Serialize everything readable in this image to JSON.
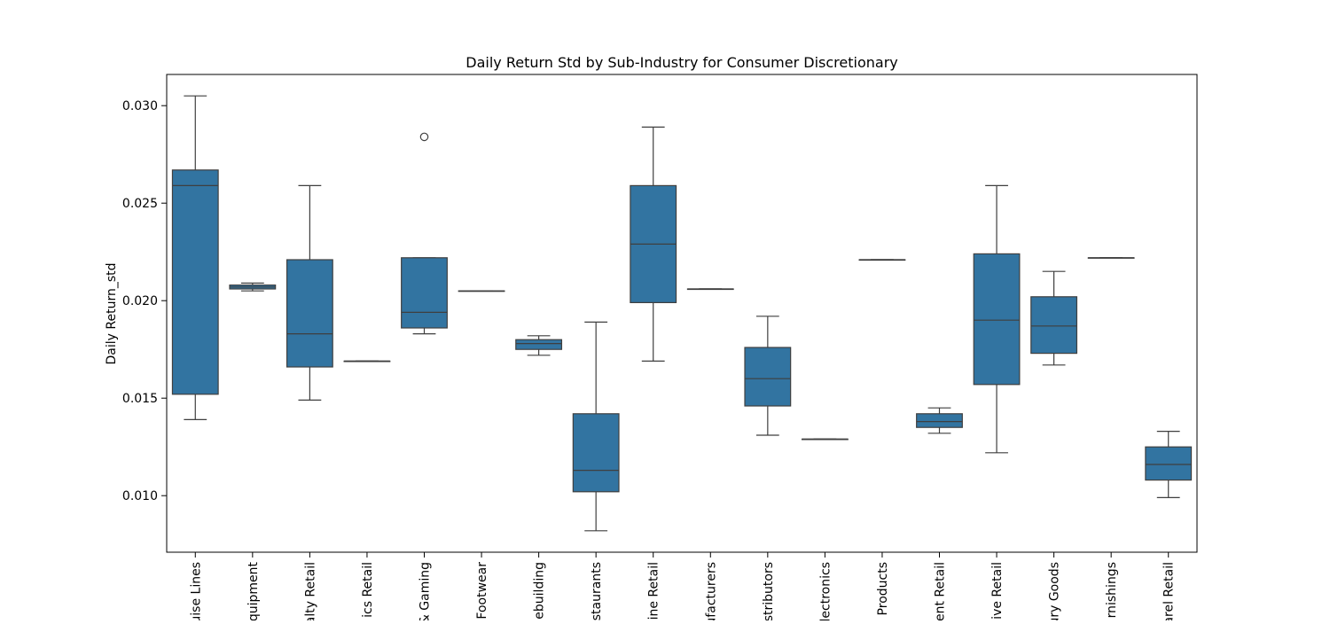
{
  "chart_data": {
    "type": "box",
    "title": "Daily Return Std by Sub-Industry for Consumer Discretionary",
    "xlabel": "",
    "ylabel": "Daily Return_std",
    "ylim": [
      0.0071,
      0.0316
    ],
    "yticks": [
      "0.010",
      "0.015",
      "0.020",
      "0.025",
      "0.030"
    ],
    "grid": false,
    "box_color": "#3274a1",
    "line_color": "#3f3f3f",
    "category_labels": [
      "uise Lines",
      "quipment",
      "alty Retail",
      "ics Retail",
      "& Gaming",
      "Footwear",
      "ebuilding",
      "staurants",
      "ine Retail",
      "ufacturers",
      "stributors",
      "lectronics",
      "Products",
      "ent Retail",
      "ive Retail",
      "ury Goods",
      "rnishings",
      "arel Retail"
    ],
    "boxes": [
      {
        "whisker_low": 0.0139,
        "q1": 0.0152,
        "median": 0.0259,
        "q3": 0.0267,
        "whisker_high": 0.0305,
        "outliers": []
      },
      {
        "whisker_low": 0.0205,
        "q1": 0.0206,
        "median": 0.0207,
        "q3": 0.0208,
        "whisker_high": 0.0209,
        "outliers": []
      },
      {
        "whisker_low": 0.0149,
        "q1": 0.0166,
        "median": 0.0183,
        "q3": 0.0221,
        "whisker_high": 0.0259,
        "outliers": []
      },
      {
        "whisker_low": 0.0169,
        "q1": 0.0169,
        "median": 0.0169,
        "q3": 0.0169,
        "whisker_high": 0.0169,
        "outliers": []
      },
      {
        "whisker_low": 0.0183,
        "q1": 0.0186,
        "median": 0.0194,
        "q3": 0.0222,
        "whisker_high": 0.0222,
        "outliers": [
          0.0284
        ]
      },
      {
        "whisker_low": 0.0205,
        "q1": 0.0205,
        "median": 0.0205,
        "q3": 0.0205,
        "whisker_high": 0.0205,
        "outliers": []
      },
      {
        "whisker_low": 0.0172,
        "q1": 0.0175,
        "median": 0.0178,
        "q3": 0.018,
        "whisker_high": 0.0182,
        "outliers": []
      },
      {
        "whisker_low": 0.0082,
        "q1": 0.0102,
        "median": 0.0113,
        "q3": 0.0142,
        "whisker_high": 0.0189,
        "outliers": []
      },
      {
        "whisker_low": 0.0169,
        "q1": 0.0199,
        "median": 0.0229,
        "q3": 0.0259,
        "whisker_high": 0.0289,
        "outliers": []
      },
      {
        "whisker_low": 0.0206,
        "q1": 0.0206,
        "median": 0.0206,
        "q3": 0.0206,
        "whisker_high": 0.0206,
        "outliers": []
      },
      {
        "whisker_low": 0.0131,
        "q1": 0.0146,
        "median": 0.016,
        "q3": 0.0176,
        "whisker_high": 0.0192,
        "outliers": []
      },
      {
        "whisker_low": 0.0129,
        "q1": 0.0129,
        "median": 0.0129,
        "q3": 0.0129,
        "whisker_high": 0.0129,
        "outliers": []
      },
      {
        "whisker_low": 0.0221,
        "q1": 0.0221,
        "median": 0.0221,
        "q3": 0.0221,
        "whisker_high": 0.0221,
        "outliers": []
      },
      {
        "whisker_low": 0.0132,
        "q1": 0.0135,
        "median": 0.0138,
        "q3": 0.0142,
        "whisker_high": 0.0145,
        "outliers": []
      },
      {
        "whisker_low": 0.0122,
        "q1": 0.0157,
        "median": 0.019,
        "q3": 0.0224,
        "whisker_high": 0.0259,
        "outliers": []
      },
      {
        "whisker_low": 0.0167,
        "q1": 0.0173,
        "median": 0.0187,
        "q3": 0.0202,
        "whisker_high": 0.0215,
        "outliers": []
      },
      {
        "whisker_low": 0.0222,
        "q1": 0.0222,
        "median": 0.0222,
        "q3": 0.0222,
        "whisker_high": 0.0222,
        "outliers": []
      },
      {
        "whisker_low": 0.0099,
        "q1": 0.0108,
        "median": 0.0116,
        "q3": 0.0125,
        "whisker_high": 0.0133,
        "outliers": []
      }
    ]
  }
}
